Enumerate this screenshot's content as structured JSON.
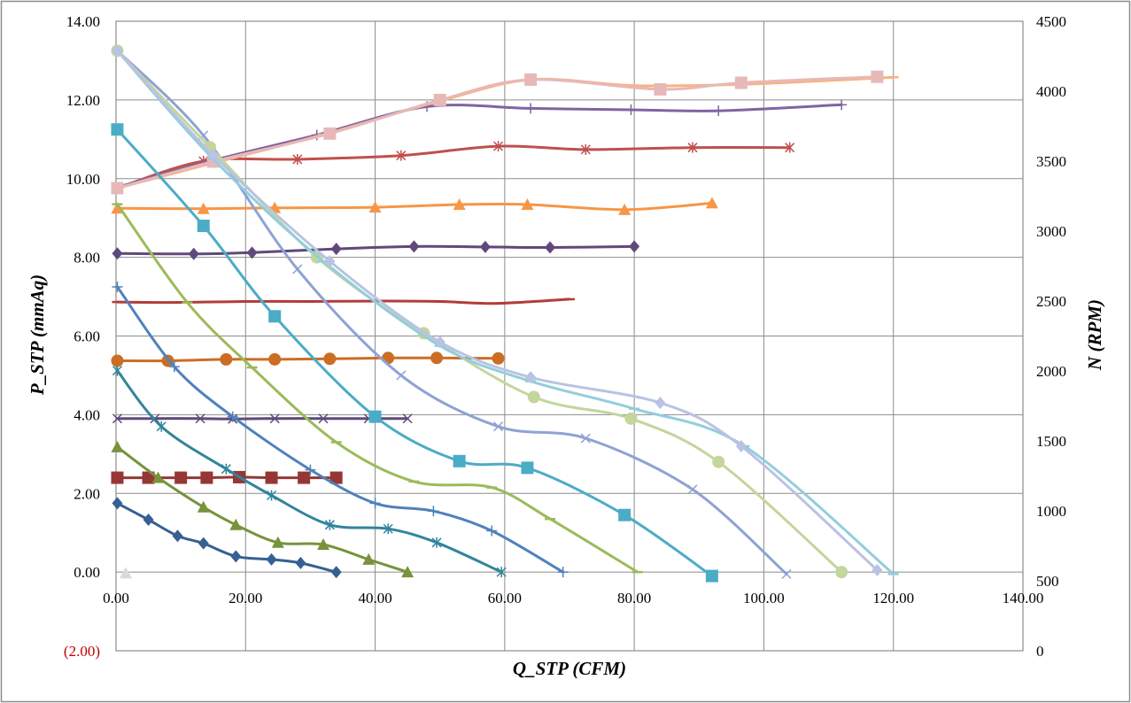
{
  "chart_data": {
    "type": "line",
    "title": "",
    "xlabel": "Q_STP (CFM)",
    "ylabel": "P_STP (mmAq)",
    "y2label": "N (RPM)",
    "xlim": [
      0,
      140
    ],
    "ylim": [
      -2,
      14
    ],
    "y2lim": [
      0,
      4500
    ],
    "grid": true,
    "legend": "none",
    "x_ticks": [
      "0.00",
      "20.00",
      "40.00",
      "60.00",
      "80.00",
      "100.00",
      "120.00",
      "140.00"
    ],
    "y_ticks": [
      "(2.00)",
      "0.00",
      "2.00",
      "4.00",
      "6.00",
      "8.00",
      "10.00",
      "12.00",
      "14.00"
    ],
    "y_tick_colors": [
      "#c00000",
      "#000000",
      "#000000",
      "#000000",
      "#000000",
      "#000000",
      "#000000",
      "#000000",
      "#000000"
    ],
    "y2_ticks": [
      "0",
      "500",
      "1000",
      "1500",
      "2000",
      "2500",
      "3000",
      "3500",
      "4000",
      "4500"
    ],
    "pressure_series": [
      {
        "color": "#366092",
        "marker": "diamond",
        "points": [
          [
            0.2,
            1.75
          ],
          [
            5,
            1.33
          ],
          [
            9.5,
            0.92
          ],
          [
            13.5,
            0.73
          ],
          [
            18.5,
            0.4
          ],
          [
            24,
            0.32
          ],
          [
            28.5,
            0.23
          ],
          [
            34,
            0
          ]
        ]
      },
      {
        "color": "#77933c",
        "marker": "triangle",
        "points": [
          [
            0.2,
            3.18
          ],
          [
            6.5,
            2.4
          ],
          [
            13.5,
            1.65
          ],
          [
            18.5,
            1.2
          ],
          [
            25,
            0.75
          ],
          [
            32,
            0.7
          ],
          [
            39,
            0.32
          ],
          [
            45,
            0
          ]
        ]
      },
      {
        "color": "#31859c",
        "marker": "star",
        "points": [
          [
            0.2,
            5.12
          ],
          [
            7,
            3.7
          ],
          [
            17,
            2.62
          ],
          [
            24,
            1.95
          ],
          [
            33,
            1.2
          ],
          [
            42,
            1.1
          ],
          [
            49.5,
            0.75
          ],
          [
            59.5,
            0
          ]
        ]
      },
      {
        "color": "#4f81bd",
        "marker": "plus",
        "points": [
          [
            0.2,
            7.25
          ],
          [
            9,
            5.22
          ],
          [
            18,
            3.95
          ],
          [
            30,
            2.6
          ],
          [
            40,
            1.75
          ],
          [
            49,
            1.55
          ],
          [
            58,
            1.05
          ],
          [
            69,
            0
          ]
        ]
      },
      {
        "color": "#9bbb59",
        "marker": "dash",
        "points": [
          [
            0.2,
            9.35
          ],
          [
            11,
            6.85
          ],
          [
            21,
            5.2
          ],
          [
            34,
            3.3
          ],
          [
            46,
            2.3
          ],
          [
            58,
            2.15
          ],
          [
            67,
            1.35
          ],
          [
            80.5,
            0
          ]
        ]
      },
      {
        "color": "#4bacc6",
        "marker": "square",
        "points": [
          [
            0.2,
            11.25
          ],
          [
            13.5,
            8.8
          ],
          [
            24.5,
            6.5
          ],
          [
            40,
            3.95
          ],
          [
            53,
            2.82
          ],
          [
            63.5,
            2.65
          ],
          [
            78.5,
            1.45
          ],
          [
            92,
            -0.1
          ]
        ]
      },
      {
        "color": "#8fa2d4",
        "marker": "x",
        "points": [
          [
            0.2,
            13.25
          ],
          [
            13.5,
            11.1
          ],
          [
            28,
            7.7
          ],
          [
            44,
            5
          ],
          [
            59,
            3.7
          ],
          [
            72.5,
            3.4
          ],
          [
            89,
            2.1
          ],
          [
            103.5,
            -0.05
          ]
        ]
      },
      {
        "color": "#c3d69b",
        "marker": "circle",
        "points": [
          [
            0.2,
            13.25
          ],
          [
            14.5,
            10.8
          ],
          [
            31,
            8
          ],
          [
            47.5,
            6.07
          ],
          [
            64.5,
            4.45
          ],
          [
            79.5,
            3.9
          ],
          [
            93,
            2.8
          ],
          [
            112,
            0
          ]
        ]
      },
      {
        "color": "#93cddd",
        "marker": "dash",
        "points": [
          [
            0.2,
            13.25
          ],
          [
            15,
            10.5
          ],
          [
            32,
            7.9
          ],
          [
            50,
            5.75
          ],
          [
            64,
            4.85
          ],
          [
            80,
            4.15
          ],
          [
            97,
            3.2
          ],
          [
            120,
            -0.05
          ]
        ]
      },
      {
        "color": "#b9c3e3",
        "marker": "diamond",
        "points": [
          [
            0.2,
            13.25
          ],
          [
            15,
            10.6
          ],
          [
            33,
            7.9
          ],
          [
            50,
            5.85
          ],
          [
            64,
            4.95
          ],
          [
            84,
            4.3
          ],
          [
            96.5,
            3.2
          ],
          [
            117.5,
            0.05
          ]
        ]
      }
    ],
    "rpm_series": [
      {
        "color": "#d9d9d9",
        "marker": "triangle",
        "points": [
          [
            1.5,
            555
          ]
        ]
      },
      {
        "color": "#953735",
        "marker": "square",
        "points": [
          [
            0.2,
            1237
          ],
          [
            5,
            1237
          ],
          [
            10,
            1237
          ],
          [
            14,
            1237
          ],
          [
            19,
            1241
          ],
          [
            24,
            1237
          ],
          [
            29,
            1237
          ],
          [
            34,
            1237
          ]
        ]
      },
      {
        "color": "#5f497a",
        "marker": "x",
        "points": [
          [
            0.2,
            1660
          ],
          [
            6,
            1660
          ],
          [
            13,
            1660
          ],
          [
            18,
            1657
          ],
          [
            24.5,
            1660
          ],
          [
            32,
            1660
          ],
          [
            39,
            1660
          ],
          [
            45,
            1660
          ]
        ]
      },
      {
        "color": "#cc6d24",
        "marker": "circle",
        "points": [
          [
            0.2,
            2073
          ],
          [
            8,
            2073
          ],
          [
            17,
            2083
          ],
          [
            24.5,
            2083
          ],
          [
            33,
            2087
          ],
          [
            42,
            2093
          ],
          [
            49.5,
            2093
          ],
          [
            59,
            2090
          ]
        ]
      },
      {
        "color": "#b13d3a",
        "marker": "dash",
        "points": [
          [
            0.2,
            2493
          ],
          [
            9,
            2490
          ],
          [
            20,
            2497
          ],
          [
            30,
            2497
          ],
          [
            42,
            2500
          ],
          [
            50,
            2497
          ],
          [
            58.5,
            2483
          ],
          [
            70,
            2513
          ]
        ]
      },
      {
        "color": "#60497a",
        "marker": "diamond",
        "points": [
          [
            0.2,
            2840
          ],
          [
            12,
            2837
          ],
          [
            21,
            2846
          ],
          [
            34,
            2873
          ],
          [
            46,
            2890
          ],
          [
            57,
            2887
          ],
          [
            67,
            2883
          ],
          [
            80,
            2890
          ]
        ]
      },
      {
        "color": "#f79646",
        "marker": "triangle",
        "points": [
          [
            0.2,
            3163
          ],
          [
            13.5,
            3160
          ],
          [
            24.5,
            3166
          ],
          [
            40,
            3170
          ],
          [
            53,
            3190
          ],
          [
            63.5,
            3190
          ],
          [
            78.5,
            3153
          ],
          [
            92,
            3200
          ]
        ]
      },
      {
        "color": "#c0504d",
        "marker": "star",
        "points": [
          [
            0.2,
            3307
          ],
          [
            13.5,
            3500
          ],
          [
            28,
            3513
          ],
          [
            44,
            3540
          ],
          [
            59,
            3607
          ],
          [
            72.5,
            3583
          ],
          [
            89,
            3597
          ],
          [
            104,
            3597
          ]
        ]
      },
      {
        "color": "#8064a2",
        "marker": "plus",
        "points": [
          [
            0.2,
            3313
          ],
          [
            14.5,
            3500
          ],
          [
            31,
            3687
          ],
          [
            48,
            3890
          ],
          [
            64,
            3877
          ],
          [
            79.5,
            3867
          ],
          [
            93,
            3860
          ],
          [
            112,
            3903
          ]
        ]
      },
      {
        "color": "#fab283",
        "marker": "dash",
        "points": [
          [
            0.2,
            3307
          ],
          [
            15,
            3487
          ],
          [
            32,
            3690
          ],
          [
            50,
            3930
          ],
          [
            64,
            4083
          ],
          [
            80,
            4040
          ],
          [
            97,
            4050
          ],
          [
            120,
            4100
          ]
        ]
      },
      {
        "color": "#e6b9b8",
        "marker": "square",
        "points": [
          [
            0.2,
            3307
          ],
          [
            15,
            3497
          ],
          [
            33,
            3697
          ],
          [
            50,
            3937
          ],
          [
            64,
            4083
          ],
          [
            84,
            4013
          ],
          [
            96.5,
            4060
          ],
          [
            117.5,
            4103
          ]
        ]
      }
    ]
  }
}
